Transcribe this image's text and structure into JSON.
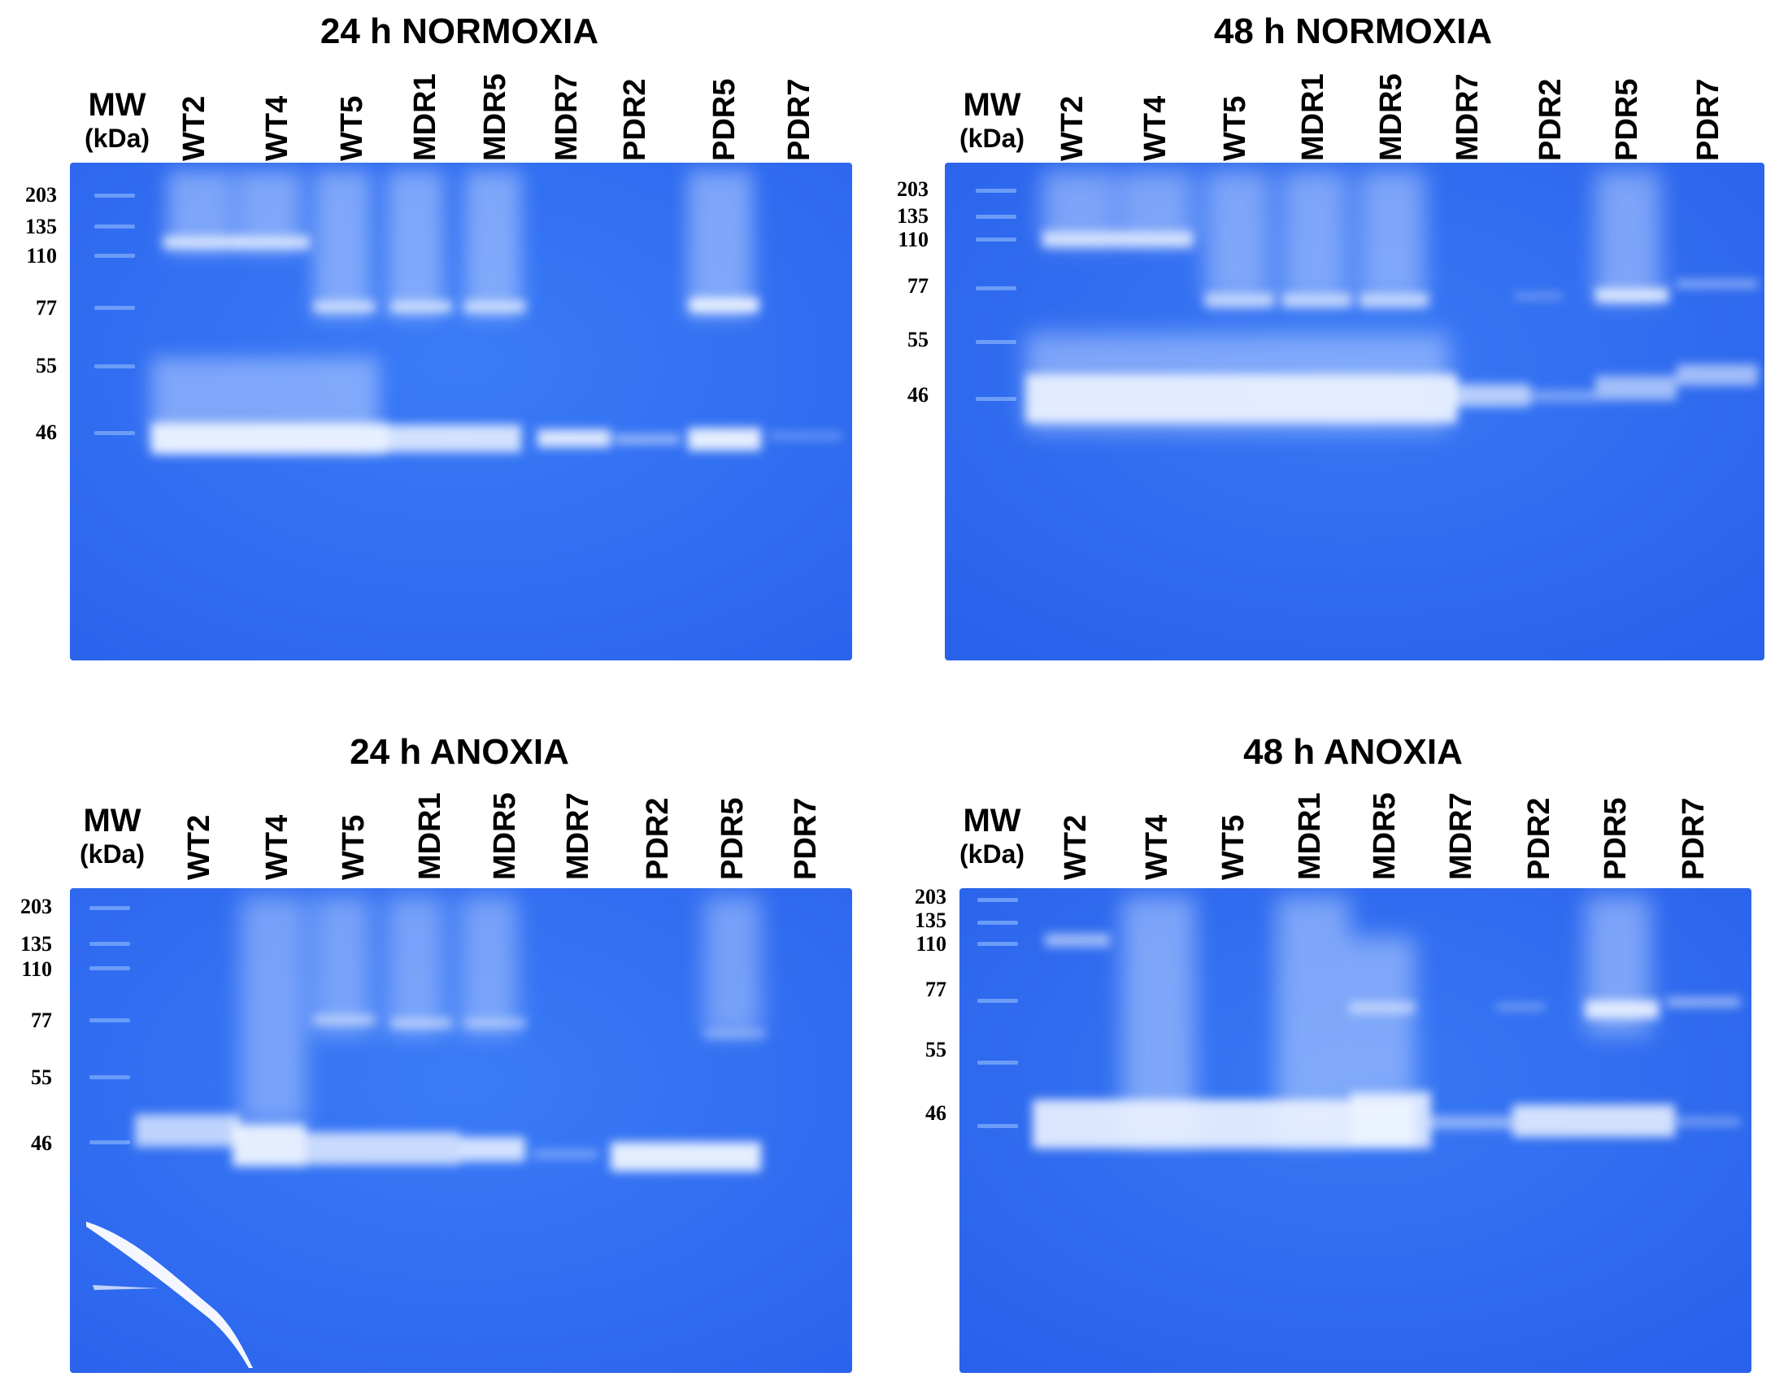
{
  "colors": {
    "gel_blue": "#2f6ef2",
    "gel_dark": "#1f55e0",
    "band": "#e6f0ff"
  },
  "panels": [
    {
      "title": "24 h NORMOXIA",
      "mw": "MW",
      "kda": "(kDa)",
      "lanes": [
        "WT2",
        "WT4",
        "WT5",
        "MDR1",
        "MDR5",
        "MDR7",
        "PDR2",
        "PDR5",
        "PDR7"
      ],
      "markers": [
        "203",
        "135",
        "110",
        "77",
        "55",
        "46"
      ]
    },
    {
      "title": "48 h NORMOXIA",
      "mw": "MW",
      "kda": "(kDa)",
      "lanes": [
        "WT2",
        "WT4",
        "WT5",
        "MDR1",
        "MDR5",
        "MDR7",
        "PDR2",
        "PDR5",
        "PDR7"
      ],
      "markers": [
        "203",
        "135",
        "110",
        "77",
        "55",
        "46"
      ]
    },
    {
      "title": "24 h ANOXIA",
      "mw": "MW",
      "kda": "(kDa)",
      "lanes": [
        "WT2",
        "WT4",
        "WT5",
        "MDR1",
        "MDR5",
        "MDR7",
        "PDR2",
        "PDR5",
        "PDR7"
      ],
      "markers": [
        "203",
        "135",
        "110",
        "77",
        "55",
        "46"
      ]
    },
    {
      "title": "48 h ANOXIA",
      "mw": "MW",
      "kda": "(kDa)",
      "lanes": [
        "WT2",
        "WT4",
        "WT5",
        "MDR1",
        "MDR5",
        "MDR7",
        "PDR2",
        "PDR5",
        "PDR7"
      ],
      "markers": [
        "203",
        "135",
        "110",
        "77",
        "55",
        "46"
      ]
    }
  ]
}
